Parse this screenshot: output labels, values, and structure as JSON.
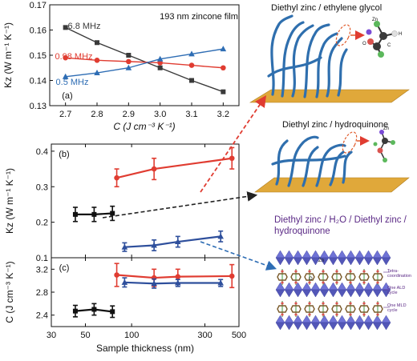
{
  "chart_data": [
    {
      "panel": "(a)",
      "type": "line",
      "annotation": "193 nm zincone film",
      "xlabel": "C (J cm⁻³ K⁻¹)",
      "ylabel": "Kz (W m⁻¹ K⁻¹)",
      "xlim": [
        2.65,
        3.25
      ],
      "ylim": [
        0.13,
        0.17
      ],
      "xticks": [
        "2.7",
        "2.8",
        "2.9",
        "3.0",
        "3.1",
        "3.2"
      ],
      "yticks": [
        "0.13",
        "0.14",
        "0.15",
        "0.16",
        "0.17"
      ],
      "series": [
        {
          "name": "6.8 MHz",
          "color": "#3a3a3a",
          "marker": "square",
          "x": [
            2.7,
            2.8,
            2.9,
            3.0,
            3.1,
            3.2
          ],
          "y": [
            0.161,
            0.155,
            0.15,
            0.145,
            0.14,
            0.1355
          ]
        },
        {
          "name": "0.98 MHz",
          "color": "#e03c31",
          "marker": "circle",
          "x": [
            2.7,
            2.8,
            2.9,
            3.0,
            3.1,
            3.2
          ],
          "y": [
            0.149,
            0.148,
            0.1475,
            0.147,
            0.146,
            0.145
          ]
        },
        {
          "name": "0.5 MHz",
          "color": "#2e6db4",
          "marker": "triangle",
          "x": [
            2.7,
            2.8,
            2.9,
            3.0,
            3.1,
            3.2
          ],
          "y": [
            0.1415,
            0.143,
            0.145,
            0.1485,
            0.1505,
            0.1525
          ]
        }
      ]
    },
    {
      "panel": "(b)",
      "type": "line",
      "ylabel": "Kz (W m⁻¹ K⁻¹)",
      "xscale": "log",
      "xlim": [
        30,
        500
      ],
      "ylim": [
        0.1,
        0.42
      ],
      "yticks": [
        "0.1",
        "0.2",
        "0.3",
        "0.4"
      ],
      "series": [
        {
          "color": "#e03c31",
          "marker": "circle",
          "x": [
            80,
            140,
            450
          ],
          "y": [
            0.325,
            0.35,
            0.38
          ],
          "err": [
            0.025,
            0.03,
            0.03
          ]
        },
        {
          "color": "#111111",
          "marker": "square",
          "x": [
            43,
            57,
            75
          ],
          "y": [
            0.222,
            0.222,
            0.225
          ],
          "err": [
            0.02,
            0.02,
            0.02
          ]
        },
        {
          "color": "#2e4f9c",
          "marker": "triangle",
          "x": [
            90,
            140,
            200,
            380
          ],
          "y": [
            0.13,
            0.135,
            0.145,
            0.16
          ],
          "err": [
            0.012,
            0.015,
            0.015,
            0.015
          ]
        }
      ]
    },
    {
      "panel": "(c)",
      "type": "line",
      "xlabel": "Sample thickness (nm)",
      "ylabel": "C (J cm⁻³ K⁻¹)",
      "xscale": "log",
      "xlim": [
        30,
        500
      ],
      "ylim": [
        2.2,
        3.4
      ],
      "xticks": [
        "30",
        "50",
        "100",
        "300",
        "500"
      ],
      "yticks": [
        "2.4",
        "2.8",
        "3.2"
      ],
      "series": [
        {
          "color": "#e03c31",
          "marker": "circle",
          "x": [
            80,
            140,
            200,
            450
          ],
          "y": [
            3.1,
            3.05,
            3.07,
            3.08
          ],
          "err": [
            0.2,
            0.15,
            0.13,
            0.2
          ]
        },
        {
          "color": "#2e4f9c",
          "marker": "triangle",
          "x": [
            90,
            140,
            200,
            380
          ],
          "y": [
            2.97,
            2.95,
            2.96,
            2.96
          ],
          "err": [
            0.08,
            0.08,
            0.06,
            0.06
          ]
        },
        {
          "color": "#111111",
          "marker": "square",
          "x": [
            43,
            57,
            75
          ],
          "y": [
            2.47,
            2.5,
            2.46
          ],
          "err": [
            0.1,
            0.1,
            0.1
          ]
        }
      ]
    }
  ],
  "schematics": {
    "top_title": "Diethyl zinc / ethylene glycol",
    "mid_title": "Diethyl zinc / hydroquinone",
    "bottom_title": "Diethyl zinc / H₂O / Diethyl zinc / hydroquinone",
    "atom_zn": "Zn",
    "atom_c": "C",
    "atom_o": "O",
    "atom_h": "H",
    "ann_tetra": "Tetra-coordination",
    "ann_ald": "One ALD cycle",
    "ann_mld": "One MLD cycle"
  },
  "colors": {
    "substrate": "#e0a83a",
    "chain": "#2f6fae",
    "arrow_red": "#e03c31",
    "arrow_dark": "#222222",
    "arrow_blue": "#2e6db4",
    "purple_text": "#5b2a86"
  }
}
